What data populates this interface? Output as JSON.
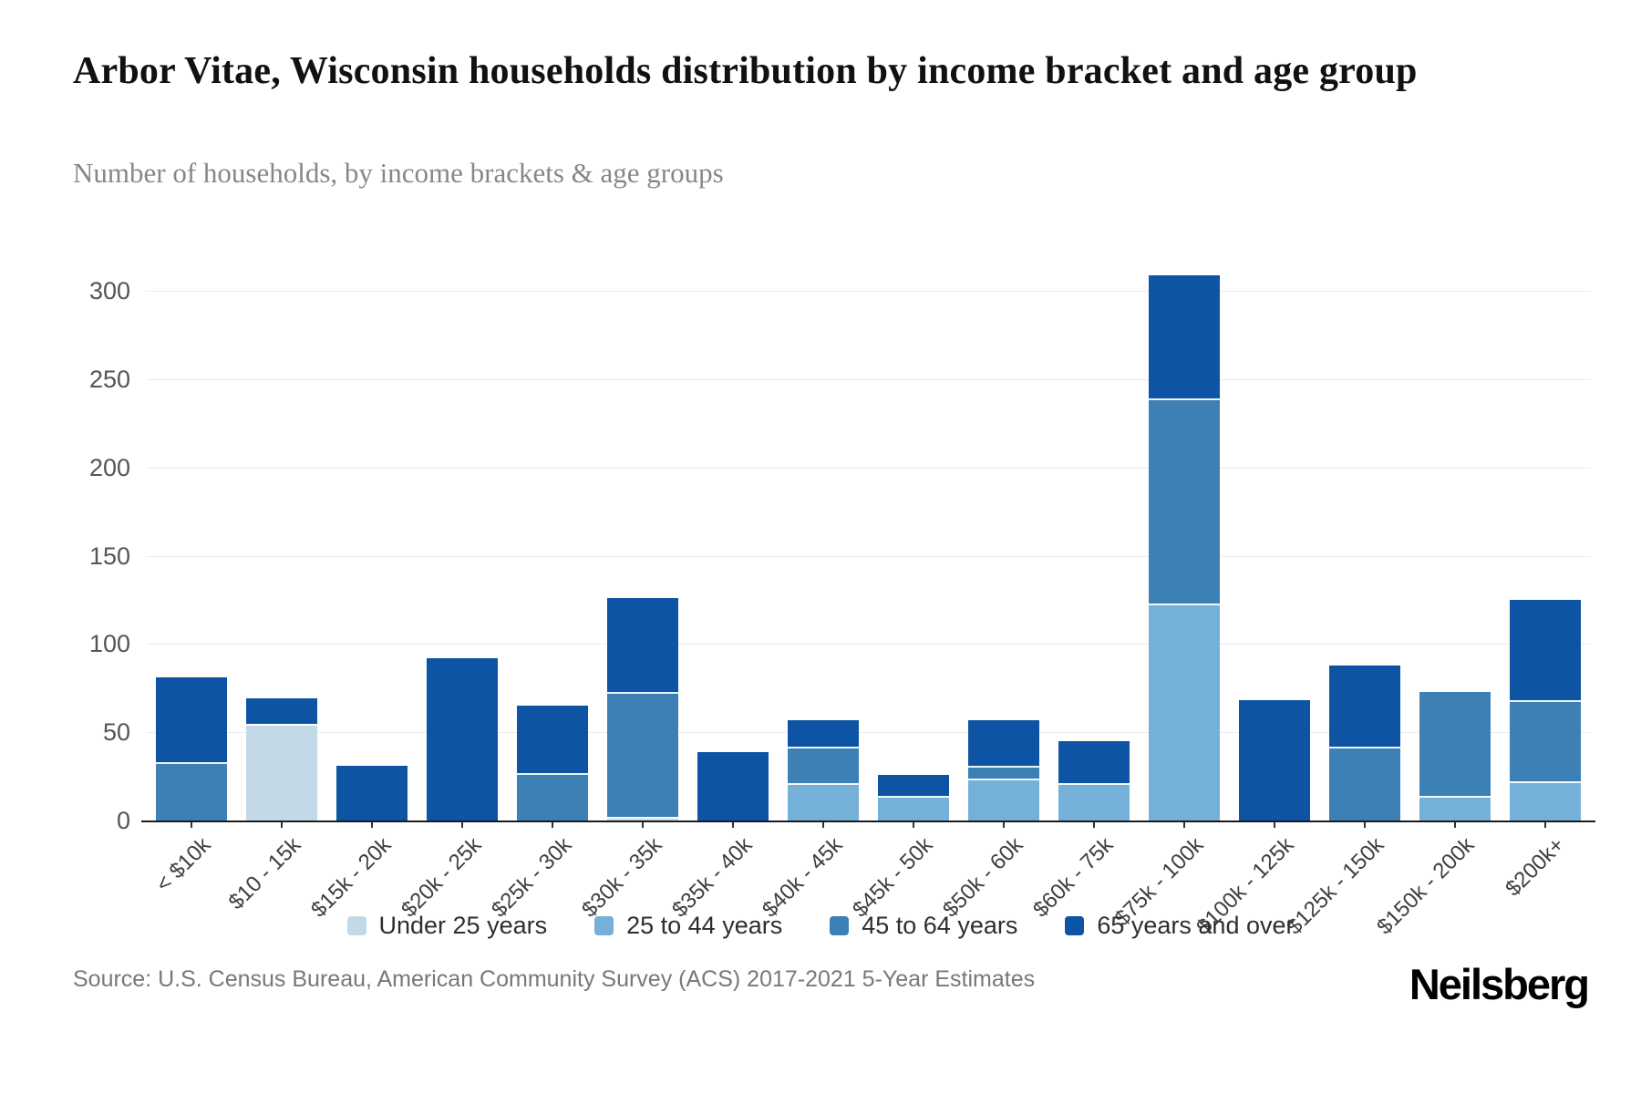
{
  "header": {
    "title": "Arbor Vitae, Wisconsin households distribution by income bracket and age group",
    "subtitle": "Number of households, by income brackets & age groups"
  },
  "footer": {
    "source": "Source: U.S. Census Bureau, American Community Survey (ACS) 2017-2021 5-Year Estimates",
    "brand": "Neilsberg"
  },
  "chart_data": {
    "type": "bar",
    "stacked": true,
    "title": "Arbor Vitae, Wisconsin households distribution by income bracket and age group",
    "xlabel": "",
    "ylabel": "Number of households",
    "ylim": [
      0,
      300
    ],
    "yticks": [
      0,
      50,
      100,
      150,
      200,
      250,
      300
    ],
    "grid": true,
    "legend_position": "bottom",
    "categories": [
      "< $10k",
      "$10 - 15k",
      "$15k - 20k",
      "$20k - 25k",
      "$25k - 30k",
      "$30k - 35k",
      "$35k - 40k",
      "$40k - 45k",
      "$45k - 50k",
      "$50k - 60k",
      "$60k - 75k",
      "$75k - 100k",
      "$100k - 125k",
      "$125k - 150k",
      "$150k - 200k",
      "$200k+"
    ],
    "series": [
      {
        "name": "Under 25 years",
        "color": "#c3d9e8",
        "values": [
          0,
          55,
          0,
          0,
          0,
          2,
          0,
          0,
          0,
          0,
          0,
          0,
          0,
          0,
          0,
          0
        ]
      },
      {
        "name": "25 to 44 years",
        "color": "#74b0d8",
        "values": [
          0,
          0,
          0,
          0,
          0,
          0,
          0,
          21,
          14,
          24,
          21,
          123,
          0,
          0,
          14,
          22
        ]
      },
      {
        "name": "45 to 64 years",
        "color": "#3d80b5",
        "values": [
          33,
          0,
          0,
          0,
          27,
          71,
          0,
          21,
          0,
          7,
          0,
          116,
          0,
          42,
          59,
          46
        ]
      },
      {
        "name": "65 years and over",
        "color": "#0d55a4",
        "values": [
          48,
          14,
          31,
          92,
          38,
          53,
          39,
          15,
          12,
          26,
          24,
          70,
          68,
          46,
          0,
          57
        ]
      }
    ],
    "totals": [
      81,
      69,
      31,
      92,
      65,
      126,
      39,
      57,
      26,
      57,
      45,
      309,
      68,
      88,
      73,
      125
    ]
  }
}
